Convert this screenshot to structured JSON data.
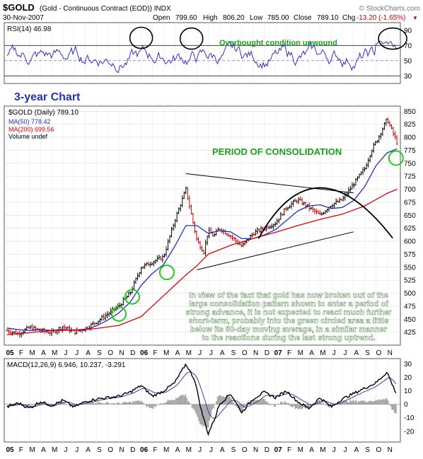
{
  "header": {
    "symbol": "$GOLD",
    "description": "(Gold - Continuous Contract (EOD)) INDX",
    "watermark": "© StockCharts.com",
    "date": "30-Nov-2007",
    "open_label": "Open",
    "open": "799.60",
    "high_label": "High",
    "high": "806.20",
    "low_label": "Low",
    "low": "785.00",
    "close_label": "Close",
    "close": "789.10",
    "chg_label": "Chg",
    "chg": "-13.20 (-1.65%)",
    "chg_arrow": "▼"
  },
  "annotations": {
    "overbought": "Overbought condition unwound",
    "three_year": "3-year Chart",
    "consolidation": "PERIOD OF CONSOLIDATION",
    "commentary": [
      "In view of the fact that gold has now broken out of the",
      "large consolidation pattern shown to enter a period of",
      "strong advance, it is not expected to react much further",
      "short-term, probably into the green circled area a little",
      "below its 50-day moving average, in a similar manner",
      "to the reactions during the last strong uptrend."
    ]
  },
  "colors": {
    "price": "#000000",
    "ma50": "#1f2fbf",
    "ma200": "#e00000",
    "rsi": "#3333cc",
    "macd_signal": "#3a3aa8",
    "annotation_green": "#1aa31a",
    "commentary_text": "#ffffff",
    "circle_green": "#22cc22"
  },
  "chart_data": [
    {
      "type": "line",
      "panel": "RSI",
      "legend": [
        {
          "label": "RSI(14) 46.98"
        }
      ],
      "ylim": [
        20,
        100
      ],
      "yticks": [
        30,
        50,
        70,
        90
      ],
      "reference_lines": [
        30,
        50,
        70
      ],
      "series": [
        {
          "name": "RSI(14)",
          "last": 46.98
        }
      ]
    },
    {
      "type": "line",
      "panel": "Price",
      "legend": [
        {
          "label": "$GOLD (Daily) 789.10"
        },
        {
          "label": "MA(50) 778.42"
        },
        {
          "label": "MA(200) 699.56"
        },
        {
          "label": "Volume undef"
        }
      ],
      "ylim": [
        400,
        860
      ],
      "yticks": [
        425,
        450,
        475,
        500,
        525,
        550,
        575,
        600,
        625,
        650,
        675,
        700,
        725,
        750,
        775,
        800,
        825,
        850
      ],
      "x_ticks": [
        "05",
        "F",
        "M",
        "A",
        "M",
        "J",
        "J",
        "A",
        "S",
        "O",
        "N",
        "D",
        "06",
        "F",
        "M",
        "A",
        "M",
        "J",
        "J",
        "A",
        "S",
        "O",
        "N",
        "D",
        "07",
        "F",
        "M",
        "A",
        "M",
        "J",
        "J",
        "A",
        "S",
        "O",
        "N"
      ],
      "x_tick_bold": [
        "05",
        "06",
        "07"
      ],
      "start_month": "2005-01",
      "series": [
        {
          "name": "$GOLD",
          "x_month": [
            0,
            1,
            2,
            3,
            4,
            5,
            6,
            7,
            8,
            9,
            10,
            11,
            12,
            13,
            14,
            15,
            16,
            17,
            17.6,
            18,
            18.5,
            19,
            20,
            21,
            22,
            23,
            24,
            25,
            26,
            27,
            28,
            29,
            30,
            31,
            32,
            32.7,
            33,
            34,
            34.9
          ],
          "y": [
            428,
            422,
            434,
            428,
            424,
            436,
            425,
            432,
            445,
            460,
            475,
            500,
            550,
            560,
            570,
            640,
            700,
            600,
            580,
            620,
            610,
            625,
            610,
            590,
            615,
            625,
            635,
            665,
            680,
            665,
            650,
            670,
            680,
            710,
            740,
            780,
            790,
            835,
            789
          ]
        },
        {
          "name": "MA(50)",
          "x_month": [
            0,
            1,
            2,
            3,
            4,
            5,
            6,
            7,
            8,
            9,
            10,
            11,
            12,
            13,
            14,
            15,
            16,
            17,
            18,
            19,
            20,
            21,
            22,
            23,
            24,
            25,
            26,
            27,
            28,
            29,
            30,
            31,
            32,
            33,
            34,
            34.9
          ],
          "y": [
            433,
            430,
            428,
            430,
            428,
            430,
            429,
            430,
            437,
            448,
            462,
            482,
            515,
            538,
            555,
            590,
            630,
            630,
            615,
            620,
            618,
            605,
            605,
            612,
            622,
            640,
            658,
            668,
            670,
            663,
            665,
            678,
            705,
            745,
            770,
            778
          ]
        },
        {
          "name": "MA(200)",
          "x_month": [
            0,
            2,
            4,
            6,
            8,
            10,
            12,
            14,
            16,
            17,
            18,
            20,
            22,
            24,
            26,
            28,
            30,
            32,
            34,
            34.9
          ],
          "y": [
            420,
            424,
            428,
            429,
            432,
            438,
            455,
            495,
            535,
            553,
            575,
            592,
            605,
            617,
            630,
            642,
            652,
            668,
            692,
            700
          ]
        }
      ],
      "annotation_lines": [
        {
          "label": "upper trendline",
          "from": [
            16,
            730
          ],
          "to": [
            31,
            693
          ]
        },
        {
          "label": "lower trendline",
          "from": [
            17,
            545
          ],
          "to": [
            31,
            618
          ]
        }
      ],
      "highlight_circles": [
        {
          "x_month": 10,
          "y": 460
        },
        {
          "x_month": 11.2,
          "y": 493
        },
        {
          "x_month": 14.3,
          "y": 540
        },
        {
          "x_month": 34.8,
          "y": 760
        }
      ]
    },
    {
      "type": "line",
      "panel": "MACD",
      "legend": [
        {
          "label": "MACD(12,26,9) 6.946, 10.237, -3.291"
        }
      ],
      "ylim": [
        -28,
        34
      ],
      "yticks": [
        -20,
        -10,
        0,
        10,
        20,
        30
      ],
      "series": [
        {
          "name": "MACD(12,26,9)",
          "last": 6.946
        },
        {
          "name": "Signal",
          "last": 10.237
        },
        {
          "name": "Histogram",
          "last": -3.291
        }
      ]
    }
  ]
}
